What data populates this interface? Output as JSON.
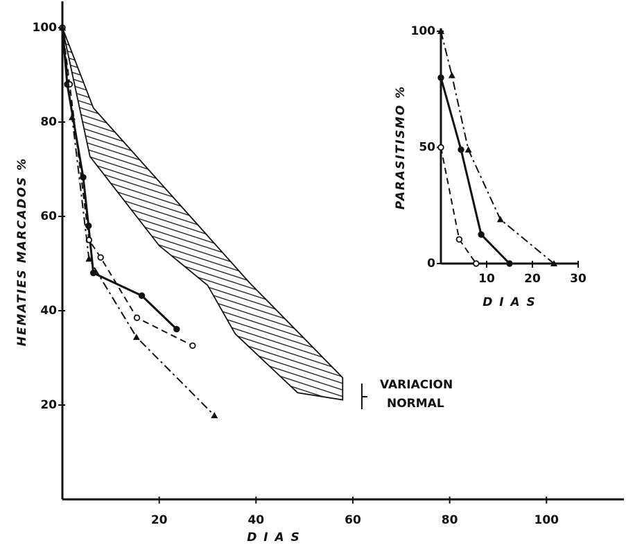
{
  "chart_data": [
    {
      "type": "line",
      "xlabel": "D I A S",
      "ylabel": "HEMATIES MARCADOS %",
      "xlim": [
        0,
        116
      ],
      "ylim": [
        0,
        105
      ],
      "xticks": [
        20,
        40,
        60,
        80,
        100
      ],
      "yticks": [
        20,
        40,
        60,
        80,
        100
      ],
      "annotation": [
        "VARIACION",
        "NORMAL"
      ],
      "band": {
        "x_upper": [
          0,
          6.4,
          38.6,
          57.9
        ],
        "upper": [
          100,
          83,
          46,
          25.8
        ],
        "x_lower": [
          0,
          5.7,
          20,
          30,
          35.7,
          48.6,
          57.9
        ],
        "lower": [
          100,
          72.7,
          53.8,
          45.4,
          35.1,
          22.6,
          21.1
        ],
        "color": "#111111"
      },
      "series": [
        {
          "color": "#111111",
          "dash": "solid",
          "marker": "filled-circle",
          "x": [
            0,
            1,
            4.3,
            5.4,
            6.4,
            16.4,
            23.6
          ],
          "values": [
            100,
            88,
            68.3,
            58,
            48,
            43.2,
            36.1
          ]
        },
        {
          "color": "#111111",
          "dash": "dashed",
          "marker": "open-circle",
          "x": [
            0,
            1.5,
            5.5,
            7.9,
            15.4,
            26.9
          ],
          "values": [
            100,
            88,
            55,
            51.3,
            38.5,
            32.6
          ]
        },
        {
          "color": "#111111",
          "dash": "dashdot",
          "marker": "triangle",
          "x": [
            0,
            2,
            5.5,
            15.3,
            31.4
          ],
          "values": [
            100,
            81,
            51,
            34.4,
            17.8
          ]
        }
      ]
    },
    {
      "type": "line",
      "xlabel": "D I A S",
      "ylabel": "PARASITISMO %",
      "xlim": [
        0,
        30
      ],
      "ylim": [
        0,
        100
      ],
      "xticks": [
        10,
        20,
        30
      ],
      "yticks": [
        0,
        50,
        100
      ],
      "series": [
        {
          "color": "#111111",
          "dash": "solid",
          "marker": "filled-circle",
          "x": [
            0,
            4.4,
            8.8,
            15
          ],
          "values": [
            80,
            49,
            12.5,
            0
          ]
        },
        {
          "color": "#111111",
          "dash": "dashed",
          "marker": "open-circle",
          "x": [
            0,
            4,
            7.7
          ],
          "values": [
            50,
            10.4,
            0
          ]
        },
        {
          "color": "#111111",
          "dash": "dashdot",
          "marker": "triangle",
          "x": [
            0,
            2.4,
            6,
            13,
            24.7
          ],
          "values": [
            100,
            81,
            49,
            19,
            0
          ]
        }
      ]
    }
  ]
}
